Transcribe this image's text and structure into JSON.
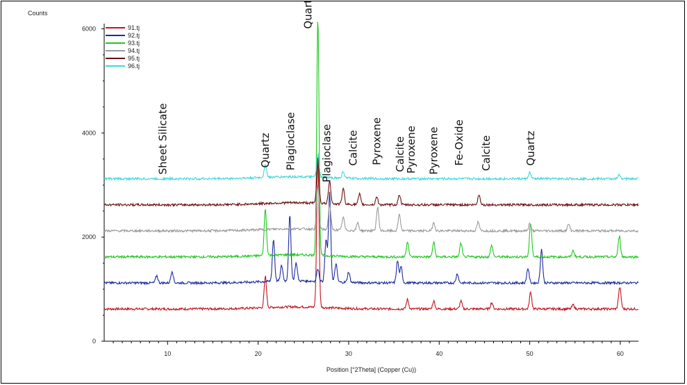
{
  "chart_data": {
    "type": "line",
    "title": "",
    "xlabel": "Position [°2Theta] (Copper (Cu))",
    "ylabel": "Counts",
    "xlim": [
      3,
      62
    ],
    "ylim": [
      0,
      6100
    ],
    "x_ticks": [
      10,
      20,
      30,
      40,
      50,
      60
    ],
    "y_ticks": [
      0,
      2000,
      4000,
      6000
    ],
    "grid": false,
    "legend": "top-left",
    "series": [
      {
        "name": "91.tj",
        "color": "#c0141c",
        "baseline": 620,
        "peaks": [
          [
            20.8,
            600
          ],
          [
            26.6,
            2900
          ],
          [
            36.5,
            180
          ],
          [
            39.4,
            150
          ],
          [
            42.4,
            150
          ],
          [
            45.8,
            120
          ],
          [
            50.1,
            320
          ],
          [
            54.8,
            80
          ],
          [
            59.9,
            250
          ],
          [
            60.0,
            200
          ]
        ]
      },
      {
        "name": "92.tj",
        "color": "#1c2a9c",
        "baseline": 1120,
        "peaks": [
          [
            8.8,
            140
          ],
          [
            10.5,
            230
          ],
          [
            21.7,
            800
          ],
          [
            22.6,
            300
          ],
          [
            23.5,
            1250
          ],
          [
            24.2,
            350
          ],
          [
            26.6,
            250
          ],
          [
            27.5,
            800
          ],
          [
            27.9,
            1700
          ],
          [
            28.6,
            350
          ],
          [
            30.0,
            200
          ],
          [
            35.4,
            420
          ],
          [
            35.8,
            300
          ],
          [
            42.0,
            180
          ],
          [
            49.8,
            280
          ],
          [
            51.3,
            650
          ]
        ]
      },
      {
        "name": "93.tj",
        "color": "#1ec81e",
        "baseline": 1620,
        "peaks": [
          [
            20.8,
            900
          ],
          [
            26.6,
            4550
          ],
          [
            36.5,
            300
          ],
          [
            39.4,
            280
          ],
          [
            42.4,
            260
          ],
          [
            45.8,
            220
          ],
          [
            50.1,
            650
          ],
          [
            54.8,
            120
          ],
          [
            59.9,
            400
          ]
        ]
      },
      {
        "name": "94.tj",
        "color": "#9a9a9a",
        "baseline": 2120,
        "peaks": [
          [
            26.6,
            850
          ],
          [
            27.9,
            500
          ],
          [
            29.4,
            250
          ],
          [
            31.0,
            150
          ],
          [
            33.2,
            450
          ],
          [
            35.6,
            320
          ],
          [
            39.4,
            160
          ],
          [
            44.3,
            170
          ],
          [
            50.0,
            140
          ],
          [
            54.3,
            130
          ]
        ]
      },
      {
        "name": "95.tj",
        "color": "#6a0f0f",
        "baseline": 2620,
        "peaks": [
          [
            26.6,
            900
          ],
          [
            27.9,
            450
          ],
          [
            29.4,
            300
          ],
          [
            31.2,
            200
          ],
          [
            33.1,
            150
          ],
          [
            35.6,
            200
          ],
          [
            44.4,
            200
          ]
        ]
      },
      {
        "name": "96.tj",
        "color": "#3ed8dc",
        "baseline": 3120,
        "peaks": [
          [
            20.8,
            250
          ],
          [
            26.6,
            450
          ],
          [
            29.4,
            130
          ],
          [
            50.0,
            120
          ],
          [
            59.9,
            80
          ]
        ]
      }
    ],
    "annotations": [
      {
        "text": "Sheet Silicate",
        "x": 9.5,
        "y": 3200
      },
      {
        "text": "Quartz",
        "x": 20.8,
        "y": 3330
      },
      {
        "text": "Plagioclase",
        "x": 23.6,
        "y": 3280
      },
      {
        "text": "Quartz",
        "x": 25.5,
        "y": 6000
      },
      {
        "text": "Plagioclase",
        "x": 27.6,
        "y": 3050
      },
      {
        "text": "Calcite",
        "x": 30.5,
        "y": 3370
      },
      {
        "text": "Pyroxene",
        "x": 33.1,
        "y": 3380
      },
      {
        "text": "Calcite",
        "x": 35.7,
        "y": 3250
      },
      {
        "text": "Pyroxene",
        "x": 36.9,
        "y": 3220
      },
      {
        "text": "Pyroxene",
        "x": 39.4,
        "y": 3200
      },
      {
        "text": "Fe-Oxide",
        "x": 42.2,
        "y": 3370
      },
      {
        "text": "Calcite",
        "x": 45.2,
        "y": 3270
      },
      {
        "text": "Quartz",
        "x": 50.1,
        "y": 3370
      }
    ]
  }
}
